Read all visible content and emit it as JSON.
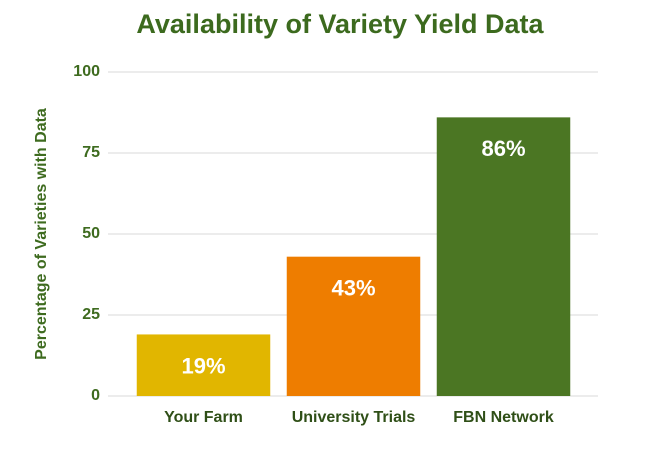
{
  "chart_data": {
    "type": "bar",
    "title": "Availability of Variety Yield Data",
    "y_label": "Percentage of Varieties with Data",
    "categories": [
      "Your Farm",
      "University Trials",
      "FBN Network"
    ],
    "values": [
      19,
      43,
      86
    ],
    "value_labels": [
      "19%",
      "43%",
      "86%"
    ],
    "colors": [
      "#e1b600",
      "#ee7d00",
      "#4b7623"
    ],
    "ylim": [
      0,
      100
    ],
    "yticks": [
      0,
      25,
      50,
      75,
      100
    ],
    "grid": true
  }
}
